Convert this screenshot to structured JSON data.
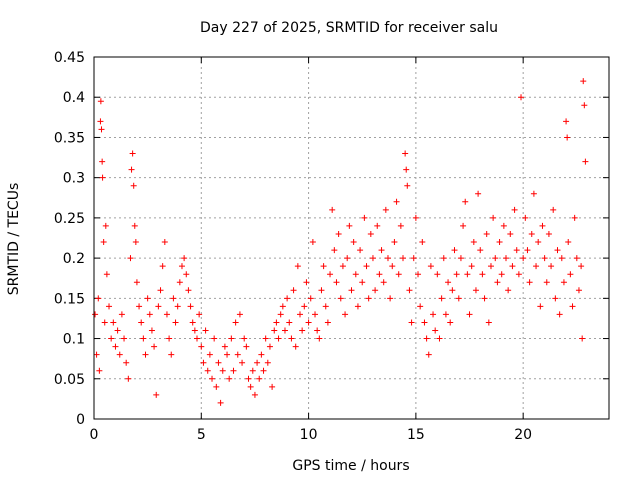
{
  "chart_data": {
    "type": "scatter",
    "title": "Day 227 of 2025, SRMTID for receiver salu",
    "xlabel": "GPS time / hours",
    "ylabel": "SRMTID / TECUs",
    "xlim": [
      0,
      24
    ],
    "ylim": [
      0,
      0.45
    ],
    "xticks": [
      0,
      5,
      10,
      15,
      20
    ],
    "xtick_labels": [
      "0",
      "5",
      "10",
      "15",
      "20"
    ],
    "yticks": [
      0,
      0.05,
      0.1,
      0.15,
      0.2,
      0.25,
      0.3,
      0.35,
      0.4,
      0.45
    ],
    "ytick_labels": [
      "0",
      "0.05",
      "0.1",
      "0.15",
      "0.2",
      "0.25",
      "0.3",
      "0.35",
      "0.4",
      "0.45"
    ],
    "grid": true,
    "marker": "plus",
    "color": "#ff0000",
    "series": [
      {
        "name": "SRMTID",
        "points": [
          [
            0.05,
            0.13
          ],
          [
            0.12,
            0.08
          ],
          [
            0.2,
            0.15
          ],
          [
            0.25,
            0.06
          ],
          [
            0.3,
            0.37
          ],
          [
            0.32,
            0.395
          ],
          [
            0.35,
            0.36
          ],
          [
            0.38,
            0.32
          ],
          [
            0.4,
            0.3
          ],
          [
            0.45,
            0.22
          ],
          [
            0.5,
            0.12
          ],
          [
            0.55,
            0.24
          ],
          [
            0.6,
            0.18
          ],
          [
            0.7,
            0.14
          ],
          [
            0.8,
            0.1
          ],
          [
            0.9,
            0.12
          ],
          [
            1.0,
            0.09
          ],
          [
            1.1,
            0.11
          ],
          [
            1.2,
            0.08
          ],
          [
            1.3,
            0.13
          ],
          [
            1.4,
            0.1
          ],
          [
            1.5,
            0.07
          ],
          [
            1.6,
            0.05
          ],
          [
            1.7,
            0.2
          ],
          [
            1.75,
            0.31
          ],
          [
            1.8,
            0.33
          ],
          [
            1.85,
            0.29
          ],
          [
            1.9,
            0.24
          ],
          [
            1.95,
            0.22
          ],
          [
            2.0,
            0.17
          ],
          [
            2.1,
            0.14
          ],
          [
            2.2,
            0.12
          ],
          [
            2.3,
            0.1
          ],
          [
            2.4,
            0.08
          ],
          [
            2.5,
            0.15
          ],
          [
            2.6,
            0.13
          ],
          [
            2.7,
            0.11
          ],
          [
            2.8,
            0.09
          ],
          [
            2.9,
            0.03
          ],
          [
            3.0,
            0.14
          ],
          [
            3.1,
            0.16
          ],
          [
            3.2,
            0.19
          ],
          [
            3.3,
            0.22
          ],
          [
            3.4,
            0.13
          ],
          [
            3.5,
            0.1
          ],
          [
            3.6,
            0.08
          ],
          [
            3.7,
            0.15
          ],
          [
            3.8,
            0.12
          ],
          [
            3.9,
            0.14
          ],
          [
            4.0,
            0.17
          ],
          [
            4.1,
            0.19
          ],
          [
            4.2,
            0.2
          ],
          [
            4.3,
            0.18
          ],
          [
            4.4,
            0.16
          ],
          [
            4.5,
            0.14
          ],
          [
            4.6,
            0.12
          ],
          [
            4.7,
            0.11
          ],
          [
            4.8,
            0.1
          ],
          [
            4.9,
            0.13
          ],
          [
            5.0,
            0.09
          ],
          [
            5.1,
            0.07
          ],
          [
            5.2,
            0.11
          ],
          [
            5.3,
            0.06
          ],
          [
            5.4,
            0.08
          ],
          [
            5.5,
            0.05
          ],
          [
            5.6,
            0.1
          ],
          [
            5.7,
            0.04
          ],
          [
            5.8,
            0.07
          ],
          [
            5.9,
            0.02
          ],
          [
            6.0,
            0.06
          ],
          [
            6.1,
            0.09
          ],
          [
            6.2,
            0.08
          ],
          [
            6.3,
            0.05
          ],
          [
            6.4,
            0.1
          ],
          [
            6.5,
            0.06
          ],
          [
            6.6,
            0.12
          ],
          [
            6.7,
            0.08
          ],
          [
            6.8,
            0.13
          ],
          [
            6.9,
            0.07
          ],
          [
            7.0,
            0.1
          ],
          [
            7.1,
            0.09
          ],
          [
            7.2,
            0.05
          ],
          [
            7.3,
            0.04
          ],
          [
            7.4,
            0.06
          ],
          [
            7.5,
            0.03
          ],
          [
            7.6,
            0.07
          ],
          [
            7.7,
            0.05
          ],
          [
            7.8,
            0.08
          ],
          [
            7.9,
            0.06
          ],
          [
            8.0,
            0.1
          ],
          [
            8.1,
            0.07
          ],
          [
            8.2,
            0.09
          ],
          [
            8.3,
            0.04
          ],
          [
            8.4,
            0.11
          ],
          [
            8.5,
            0.12
          ],
          [
            8.6,
            0.1
          ],
          [
            8.7,
            0.13
          ],
          [
            8.8,
            0.14
          ],
          [
            8.9,
            0.11
          ],
          [
            9.0,
            0.15
          ],
          [
            9.1,
            0.12
          ],
          [
            9.2,
            0.1
          ],
          [
            9.3,
            0.16
          ],
          [
            9.4,
            0.09
          ],
          [
            9.5,
            0.19
          ],
          [
            9.6,
            0.13
          ],
          [
            9.7,
            0.11
          ],
          [
            9.8,
            0.14
          ],
          [
            9.9,
            0.17
          ],
          [
            10.0,
            0.12
          ],
          [
            10.1,
            0.15
          ],
          [
            10.2,
            0.22
          ],
          [
            10.3,
            0.13
          ],
          [
            10.4,
            0.11
          ],
          [
            10.5,
            0.1
          ],
          [
            10.6,
            0.16
          ],
          [
            10.7,
            0.19
          ],
          [
            10.8,
            0.14
          ],
          [
            10.9,
            0.12
          ],
          [
            11.0,
            0.18
          ],
          [
            11.1,
            0.26
          ],
          [
            11.2,
            0.21
          ],
          [
            11.3,
            0.17
          ],
          [
            11.4,
            0.23
          ],
          [
            11.5,
            0.15
          ],
          [
            11.6,
            0.19
          ],
          [
            11.7,
            0.13
          ],
          [
            11.8,
            0.2
          ],
          [
            11.9,
            0.24
          ],
          [
            12.0,
            0.16
          ],
          [
            12.1,
            0.22
          ],
          [
            12.2,
            0.18
          ],
          [
            12.3,
            0.14
          ],
          [
            12.4,
            0.21
          ],
          [
            12.5,
            0.17
          ],
          [
            12.6,
            0.25
          ],
          [
            12.7,
            0.19
          ],
          [
            12.8,
            0.15
          ],
          [
            12.9,
            0.23
          ],
          [
            13.0,
            0.2
          ],
          [
            13.1,
            0.16
          ],
          [
            13.2,
            0.24
          ],
          [
            13.3,
            0.18
          ],
          [
            13.4,
            0.21
          ],
          [
            13.5,
            0.17
          ],
          [
            13.6,
            0.26
          ],
          [
            13.7,
            0.2
          ],
          [
            13.8,
            0.15
          ],
          [
            13.9,
            0.19
          ],
          [
            14.0,
            0.22
          ],
          [
            14.1,
            0.27
          ],
          [
            14.2,
            0.18
          ],
          [
            14.3,
            0.24
          ],
          [
            14.4,
            0.2
          ],
          [
            14.5,
            0.33
          ],
          [
            14.55,
            0.31
          ],
          [
            14.6,
            0.29
          ],
          [
            14.7,
            0.16
          ],
          [
            14.8,
            0.12
          ],
          [
            14.9,
            0.2
          ],
          [
            15.0,
            0.25
          ],
          [
            15.1,
            0.18
          ],
          [
            15.2,
            0.14
          ],
          [
            15.3,
            0.22
          ],
          [
            15.4,
            0.12
          ],
          [
            15.5,
            0.1
          ],
          [
            15.6,
            0.08
          ],
          [
            15.7,
            0.19
          ],
          [
            15.8,
            0.13
          ],
          [
            15.9,
            0.11
          ],
          [
            16.0,
            0.18
          ],
          [
            16.1,
            0.1
          ],
          [
            16.2,
            0.15
          ],
          [
            16.3,
            0.2
          ],
          [
            16.4,
            0.13
          ],
          [
            16.5,
            0.17
          ],
          [
            16.6,
            0.12
          ],
          [
            16.7,
            0.16
          ],
          [
            16.8,
            0.21
          ],
          [
            16.9,
            0.18
          ],
          [
            17.0,
            0.15
          ],
          [
            17.1,
            0.2
          ],
          [
            17.2,
            0.24
          ],
          [
            17.3,
            0.27
          ],
          [
            17.4,
            0.18
          ],
          [
            17.5,
            0.13
          ],
          [
            17.6,
            0.19
          ],
          [
            17.7,
            0.22
          ],
          [
            17.8,
            0.16
          ],
          [
            17.9,
            0.28
          ],
          [
            18.0,
            0.21
          ],
          [
            18.1,
            0.18
          ],
          [
            18.2,
            0.15
          ],
          [
            18.3,
            0.23
          ],
          [
            18.4,
            0.12
          ],
          [
            18.5,
            0.19
          ],
          [
            18.6,
            0.25
          ],
          [
            18.7,
            0.2
          ],
          [
            18.8,
            0.17
          ],
          [
            18.9,
            0.22
          ],
          [
            19.0,
            0.18
          ],
          [
            19.1,
            0.24
          ],
          [
            19.2,
            0.2
          ],
          [
            19.3,
            0.16
          ],
          [
            19.4,
            0.23
          ],
          [
            19.5,
            0.19
          ],
          [
            19.6,
            0.26
          ],
          [
            19.7,
            0.21
          ],
          [
            19.8,
            0.18
          ],
          [
            19.9,
            0.4
          ],
          [
            20.0,
            0.2
          ],
          [
            20.1,
            0.25
          ],
          [
            20.2,
            0.21
          ],
          [
            20.3,
            0.17
          ],
          [
            20.4,
            0.23
          ],
          [
            20.5,
            0.28
          ],
          [
            20.6,
            0.19
          ],
          [
            20.7,
            0.22
          ],
          [
            20.8,
            0.14
          ],
          [
            20.9,
            0.24
          ],
          [
            21.0,
            0.2
          ],
          [
            21.1,
            0.17
          ],
          [
            21.2,
            0.23
          ],
          [
            21.3,
            0.19
          ],
          [
            21.4,
            0.26
          ],
          [
            21.5,
            0.15
          ],
          [
            21.6,
            0.21
          ],
          [
            21.7,
            0.13
          ],
          [
            21.8,
            0.2
          ],
          [
            21.9,
            0.17
          ],
          [
            22.0,
            0.37
          ],
          [
            22.05,
            0.35
          ],
          [
            22.1,
            0.22
          ],
          [
            22.2,
            0.18
          ],
          [
            22.3,
            0.14
          ],
          [
            22.4,
            0.25
          ],
          [
            22.5,
            0.2
          ],
          [
            22.6,
            0.16
          ],
          [
            22.7,
            0.19
          ],
          [
            22.75,
            0.1
          ],
          [
            22.8,
            0.42
          ],
          [
            22.85,
            0.39
          ],
          [
            22.9,
            0.32
          ]
        ]
      }
    ]
  }
}
